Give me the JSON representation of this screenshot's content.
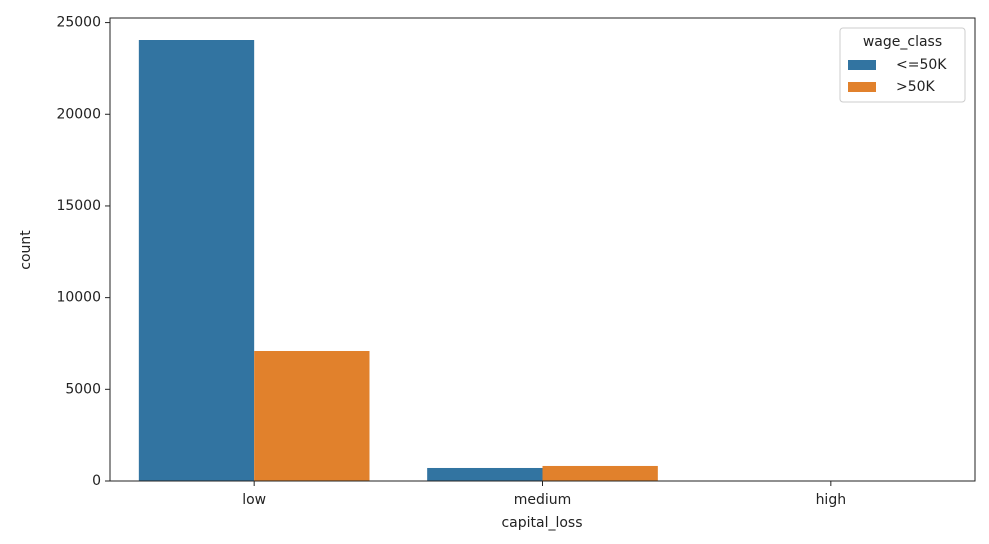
{
  "chart_data": {
    "type": "bar",
    "x_label": "capital_loss",
    "y_label": "count",
    "categories": [
      "low",
      "medium",
      "high"
    ],
    "series": [
      {
        "name": "<=50K",
        "color": "#3274a1",
        "values": [
          24050,
          710,
          0
        ]
      },
      {
        "name": ">50K",
        "color": "#e1812c",
        "values": [
          7090,
          820,
          0
        ]
      }
    ],
    "ylim": [
      0,
      25250
    ],
    "yticks": [
      0,
      5000,
      10000,
      15000,
      20000,
      25000
    ],
    "legend_title": "wage_class",
    "legend": "upper right",
    "grid": false
  }
}
